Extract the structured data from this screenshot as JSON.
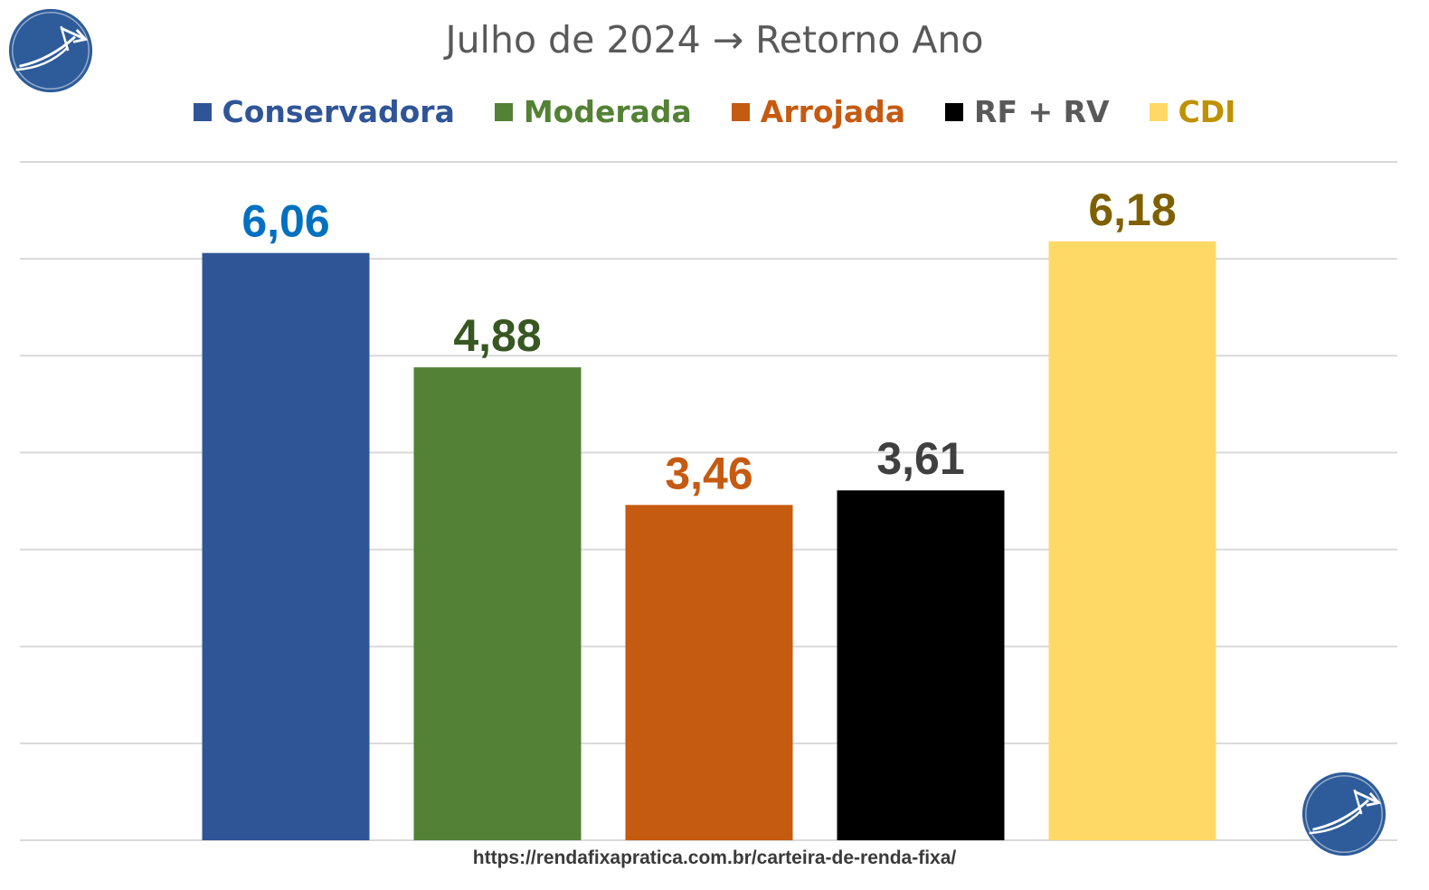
{
  "title": "Julho de 2024 → Retorno Ano",
  "footer_url": "https://rendafixapratica.com.br/carteira-de-renda-fixa/",
  "logo": {
    "name": "rendafixapratica-logo",
    "icon": "arrow-growth-icon",
    "color": "#2e5c9a"
  },
  "chart_data": {
    "type": "bar",
    "title": "Julho de 2024 → Retorno Ano",
    "xlabel": "",
    "ylabel": "",
    "ylim": [
      0,
      7
    ],
    "grid": true,
    "legend_placement": "top",
    "categories": [
      "Conservadora",
      "Moderada",
      "Arrojada",
      "RF + RV",
      "CDI"
    ],
    "values": [
      6.06,
      4.88,
      3.46,
      3.61,
      6.18
    ],
    "data_labels": [
      "6,06",
      "4,88",
      "3,46",
      "3,61",
      "6,18"
    ],
    "bar_colors": [
      "#2f5597",
      "#538135",
      "#c55a11",
      "#000000",
      "#ffd966"
    ],
    "label_colors": [
      "#0070c0",
      "#385723",
      "#c55a11",
      "#404040",
      "#7f6000"
    ],
    "legend_text_colors": [
      "#2f5597",
      "#538135",
      "#c55a11",
      "#595959",
      "#bf9000"
    ]
  }
}
